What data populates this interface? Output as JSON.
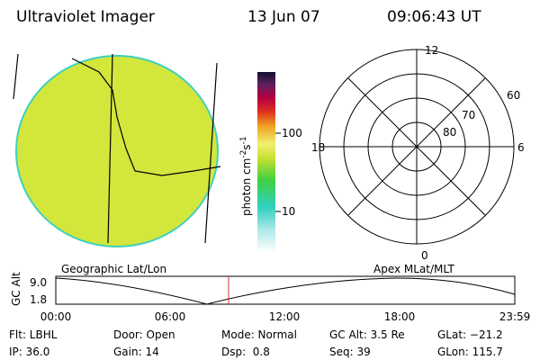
{
  "header": {
    "instrument": "Ultraviolet Imager",
    "date": "13 Jun 07",
    "time": "09:06:43 UT"
  },
  "colorbar": {
    "label": [
      "photon cm",
      "-2",
      "s",
      "-1"
    ],
    "ticks": [
      "100",
      "10"
    ]
  },
  "polar": {
    "mlt_labels": [
      "12",
      "18",
      "6",
      "0"
    ],
    "lat_labels": [
      "60",
      "70",
      "80"
    ]
  },
  "orbit": {
    "left_title": "Geographic Lat/Lon",
    "right_title": "Apex MLat/MLT",
    "axis_label": "GC Alt",
    "y_labels": [
      "9.0",
      "1.8"
    ],
    "time_labels": [
      "00:00",
      "06:00",
      "12:00",
      "18:00",
      "23:59"
    ]
  },
  "info": {
    "rows": [
      [
        "Flt: LBHL",
        "Door: Open",
        "Mode: Normal",
        "GC Alt: 3.5 Re",
        "GLat: −21.2"
      ],
      [
        "IP: 36.0",
        "Gain: 14",
        "Dsp:  0.8",
        "Seq: 39",
        "GLon: 115.7"
      ]
    ]
  }
}
